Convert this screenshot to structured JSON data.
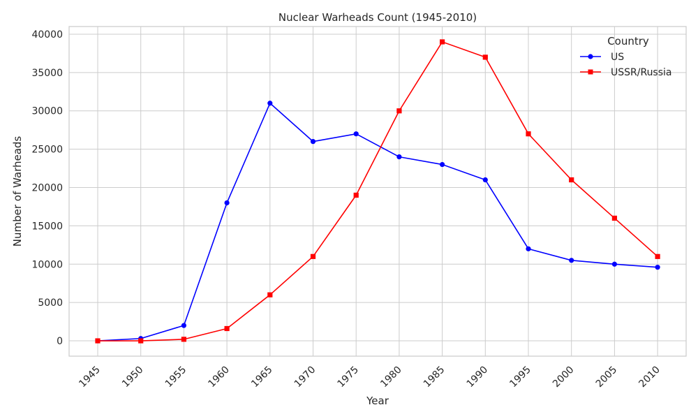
{
  "chart_data": {
    "type": "line",
    "title": "Nuclear Warheads Count (1945-2010)",
    "xlabel": "Year",
    "ylabel": "Number of Warheads",
    "x": [
      "1945",
      "1950",
      "1955",
      "1960",
      "1965",
      "1970",
      "1975",
      "1980",
      "1985",
      "1990",
      "1995",
      "2000",
      "2005",
      "2010"
    ],
    "ylim": [
      -2000,
      41000
    ],
    "yticks": [
      0,
      5000,
      10000,
      15000,
      20000,
      25000,
      30000,
      35000,
      40000
    ],
    "grid": true,
    "legend": {
      "title": "Country",
      "placement": "top-right"
    },
    "series": [
      {
        "name": "US",
        "color": "#0000ff",
        "marker": "circle",
        "values": [
          0,
          300,
          2000,
          18000,
          31000,
          26000,
          27000,
          24000,
          23000,
          21000,
          12000,
          10500,
          10000,
          9600
        ]
      },
      {
        "name": "USSR/Russia",
        "color": "#ff0000",
        "marker": "square",
        "values": [
          0,
          0,
          200,
          1600,
          6000,
          11000,
          19000,
          30000,
          39000,
          37000,
          27000,
          21000,
          16000,
          11000
        ]
      }
    ]
  }
}
